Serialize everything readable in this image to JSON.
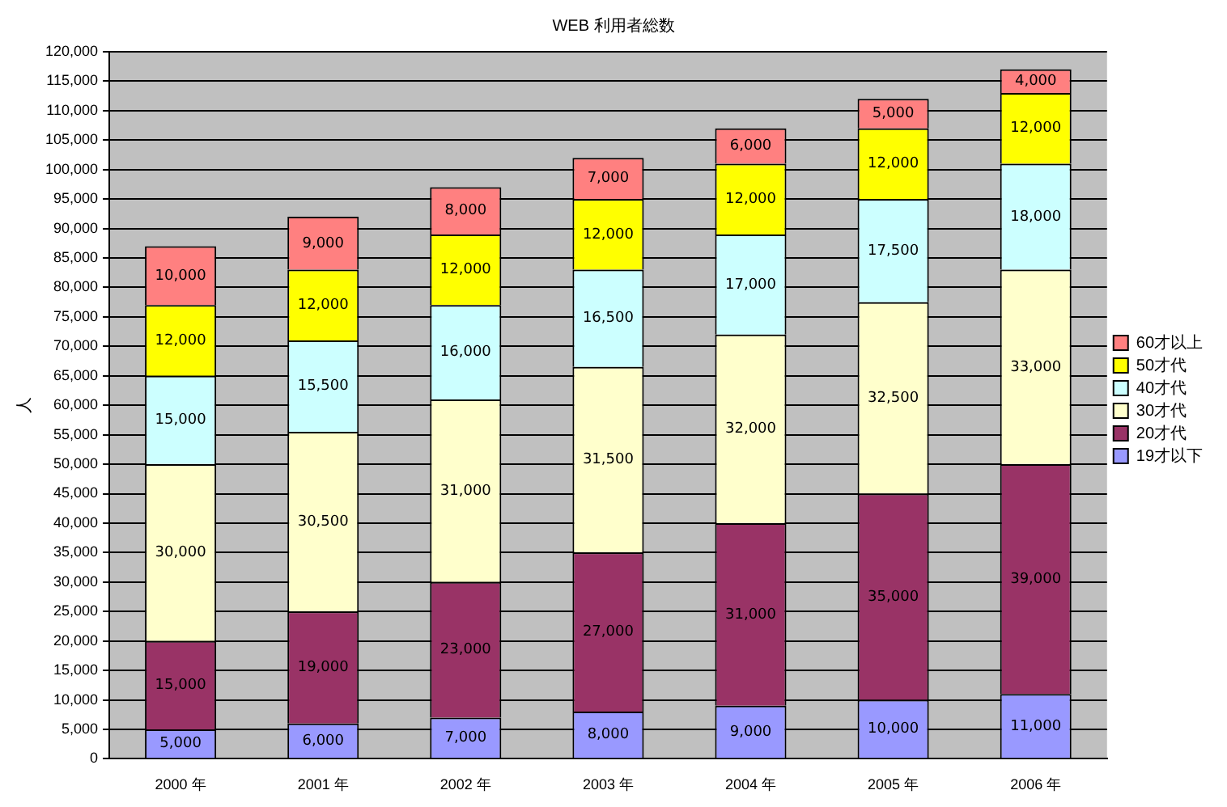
{
  "chart_data": {
    "type": "bar",
    "title": "WEB 利用者総数",
    "ylabel": "人",
    "stacked": true,
    "grid": "y",
    "legend": "right",
    "categories": [
      "2000 年",
      "2001 年",
      "2002 年",
      "2003 年",
      "2004 年",
      "2005 年",
      "2006 年"
    ],
    "ylim": [
      0,
      120000
    ],
    "yticks": [
      0,
      {
        "value": 5000,
        "label": "5,000"
      },
      {
        "value": 10000,
        "label": "10,000"
      },
      {
        "value": 15000,
        "label": "15,000"
      },
      {
        "value": 20000,
        "label": "20,000"
      },
      {
        "value": 25000,
        "label": "25,000"
      },
      {
        "value": 30000,
        "label": "30,000"
      },
      {
        "value": 35000,
        "label": "35,000"
      },
      {
        "value": 40000,
        "label": "40,000"
      },
      {
        "value": 45000,
        "label": "45,000"
      },
      {
        "value": 50000,
        "label": "50,000"
      },
      {
        "value": 55000,
        "label": "55,000"
      },
      {
        "value": 60000,
        "label": "60,000"
      },
      {
        "value": 65000,
        "label": "65,000"
      },
      {
        "value": 70000,
        "label": "70,000"
      },
      {
        "value": 75000,
        "label": "75,000"
      },
      {
        "value": 80000,
        "label": "80,000"
      },
      {
        "value": 85000,
        "label": "85,000"
      },
      {
        "value": 90000,
        "label": "90,000"
      },
      {
        "value": 95000,
        "label": "95,000"
      },
      {
        "value": 100000,
        "label": "100,000"
      },
      {
        "value": 105000,
        "label": "105,000"
      },
      {
        "value": 110000,
        "label": "110,000"
      },
      {
        "value": 115000,
        "label": "115,000"
      },
      {
        "value": 120000,
        "label": "120,000"
      }
    ],
    "series": [
      {
        "name": "19才以下",
        "color": "#9999ff",
        "values": [
          5000,
          6000,
          7000,
          8000,
          9000,
          10000,
          11000
        ],
        "value_labels": [
          "5,000",
          "6,000",
          "7,000",
          "8,000",
          "9,000",
          "10,000",
          "11,000"
        ]
      },
      {
        "name": "20才代",
        "color": "#993366",
        "values": [
          15000,
          19000,
          23000,
          27000,
          31000,
          35000,
          39000
        ],
        "value_labels": [
          "15,000",
          "19,000",
          "23,000",
          "27,000",
          "31,000",
          "35,000",
          "39,000"
        ]
      },
      {
        "name": "30才代",
        "color": "#ffffcc",
        "values": [
          30000,
          30500,
          31000,
          31500,
          32000,
          32500,
          33000
        ],
        "value_labels": [
          "30,000",
          "30,500",
          "31,000",
          "31,500",
          "32,000",
          "32,500",
          "33,000"
        ]
      },
      {
        "name": "40才代",
        "color": "#ccffff",
        "values": [
          15000,
          15500,
          16000,
          16500,
          17000,
          17500,
          18000
        ],
        "value_labels": [
          "15,000",
          "15,500",
          "16,000",
          "16,500",
          "17,000",
          "17,500",
          "18,000"
        ]
      },
      {
        "name": "50才代",
        "color": "#ffff00",
        "values": [
          12000,
          12000,
          12000,
          12000,
          12000,
          12000,
          12000
        ],
        "value_labels": [
          "12,000",
          "12,000",
          "12,000",
          "12,000",
          "12,000",
          "12,000",
          "12,000"
        ]
      },
      {
        "name": "60才以上",
        "color": "#ff8080",
        "values": [
          10000,
          9000,
          8000,
          7000,
          6000,
          5000,
          4000
        ],
        "value_labels": [
          "10,000",
          "9,000",
          "8,000",
          "7,000",
          "6,000",
          "5,000",
          "4,000"
        ]
      }
    ]
  }
}
